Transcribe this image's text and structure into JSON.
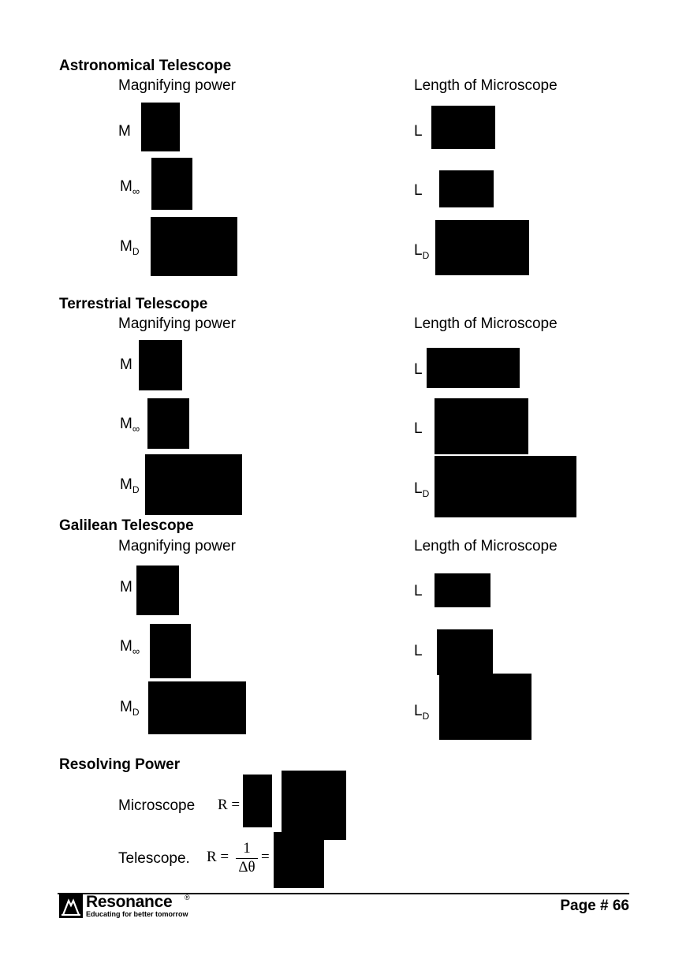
{
  "sections": {
    "astronomical": {
      "title": "Astronomical Telescope",
      "left_header": "Magnifying power",
      "right_header": "Length of Microscope"
    },
    "terrestrial": {
      "title": "Terrestrial Telescope",
      "left_header": "Magnifying power",
      "right_header": "Length of Microscope"
    },
    "galilean": {
      "title": "Galilean Telescope",
      "left_header": "Magnifying power",
      "right_header": "Length of Microscope"
    }
  },
  "symbols": {
    "M": "M",
    "L": "L",
    "D": "D",
    "infinity": "∞"
  },
  "resolving": {
    "title": "Resolving Power",
    "microscope_label": "Microscope",
    "telescope_label": "Telescope.",
    "r_eq": "R =",
    "numerator": "1",
    "denominator": "Δθ",
    "equals": "="
  },
  "footer": {
    "logo_word": "Resonance",
    "logo_reg": "®",
    "tagline": "Educating for better tomorrow",
    "page": "Page # 66"
  }
}
